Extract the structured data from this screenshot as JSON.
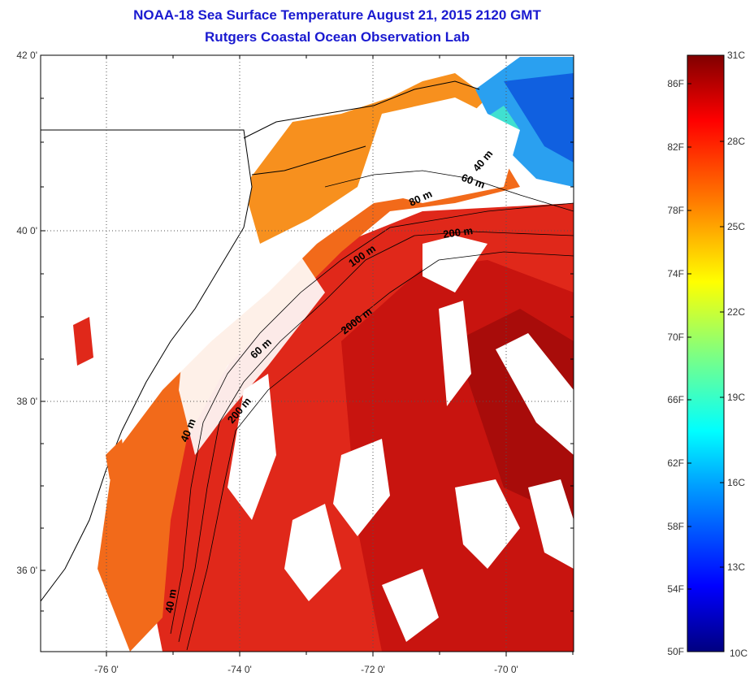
{
  "title": {
    "line1": "NOAA-18 Sea Surface Temperature August 21, 2015 2120 GMT",
    "line2": "Rutgers Coastal Ocean Observation Lab"
  },
  "map": {
    "lat_ticks": [
      "42 0'",
      "40 0'",
      "38 0'",
      "36 0'"
    ],
    "lon_ticks": [
      "-76 0'",
      "-74 0'",
      "-72 0'",
      "-70 0'"
    ],
    "grid": "dotted",
    "lon_range": [
      -77.0,
      -69.0
    ],
    "lat_range": [
      35.0,
      42.0
    ],
    "contour_labels": [
      "40 m",
      "60 m",
      "80 m",
      "200 m",
      "100 m",
      "2000 m",
      "60 m",
      "200 m",
      "40 m",
      "40 m"
    ]
  },
  "colorbar": {
    "fahrenheit": [
      "86F",
      "82F",
      "78F",
      "74F",
      "70F",
      "66F",
      "62F",
      "58F",
      "54F",
      "50F"
    ],
    "celsius": [
      "31C",
      "28C",
      "25C",
      "22C",
      "19C",
      "16C",
      "13C",
      "10C"
    ],
    "range_c": [
      10,
      31
    ],
    "colormap": "jet",
    "colors": [
      "#000080",
      "#0000ff",
      "#00a0ff",
      "#00ffff",
      "#80ff80",
      "#ffff00",
      "#ff8000",
      "#ff0000",
      "#800000"
    ]
  }
}
